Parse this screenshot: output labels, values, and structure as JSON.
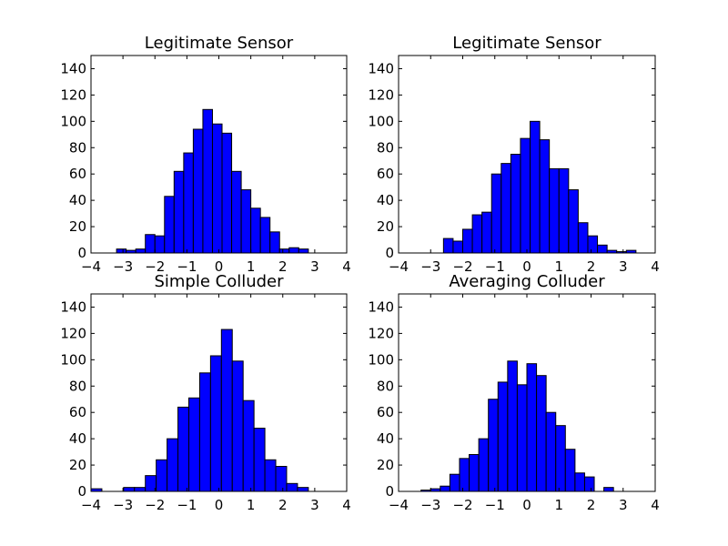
{
  "figure": {
    "background": "#ffffff"
  },
  "chart_data": [
    {
      "type": "bar",
      "title": "Legitimate Sensor",
      "xlim": [
        -4,
        4
      ],
      "ylim": [
        0,
        150
      ],
      "xticks": [
        -4,
        -3,
        -2,
        -1,
        0,
        1,
        2,
        3,
        4
      ],
      "yticks": [
        0,
        20,
        40,
        60,
        80,
        100,
        120,
        140
      ],
      "bar_color": "#0000ff",
      "bin_start": -3.2,
      "bin_width": 0.3,
      "values": [
        3,
        2,
        3,
        14,
        13,
        43,
        62,
        76,
        94,
        109,
        98,
        91,
        62,
        48,
        34,
        27,
        16,
        3,
        4,
        3
      ],
      "grid": false
    },
    {
      "type": "bar",
      "title": "Legitimate Sensor",
      "xlim": [
        -4,
        4
      ],
      "ylim": [
        0,
        150
      ],
      "xticks": [
        -4,
        -3,
        -2,
        -1,
        0,
        1,
        2,
        3,
        4
      ],
      "yticks": [
        0,
        20,
        40,
        60,
        80,
        100,
        120,
        140
      ],
      "bar_color": "#0000ff",
      "bin_start": -2.6,
      "bin_width": 0.3,
      "values": [
        11,
        9,
        18,
        29,
        31,
        60,
        68,
        75,
        87,
        100,
        86,
        64,
        64,
        48,
        23,
        13,
        6,
        2,
        1,
        2
      ],
      "grid": false
    },
    {
      "type": "bar",
      "title": "Simple Colluder",
      "xlim": [
        -4,
        4
      ],
      "ylim": [
        0,
        150
      ],
      "xticks": [
        -4,
        -3,
        -2,
        -1,
        0,
        1,
        2,
        3,
        4
      ],
      "yticks": [
        0,
        20,
        40,
        60,
        80,
        100,
        120,
        140
      ],
      "bar_color": "#0000ff",
      "bin_start": -4.0,
      "bin_width": 0.34,
      "values": [
        2,
        0,
        0,
        3,
        3,
        12,
        24,
        40,
        64,
        71,
        90,
        103,
        123,
        99,
        69,
        48,
        24,
        19,
        6,
        3
      ],
      "grid": false
    },
    {
      "type": "bar",
      "title": "Averaging Colluder",
      "xlim": [
        -4,
        4
      ],
      "ylim": [
        0,
        150
      ],
      "xticks": [
        -4,
        -3,
        -2,
        -1,
        0,
        1,
        2,
        3,
        4
      ],
      "yticks": [
        0,
        20,
        40,
        60,
        80,
        100,
        120,
        140
      ],
      "bar_color": "#0000ff",
      "bin_start": -3.3,
      "bin_width": 0.3,
      "values": [
        1,
        2,
        4,
        13,
        25,
        28,
        40,
        70,
        83,
        99,
        81,
        97,
        88,
        60,
        50,
        32,
        14,
        11,
        0,
        3
      ],
      "grid": false
    }
  ]
}
